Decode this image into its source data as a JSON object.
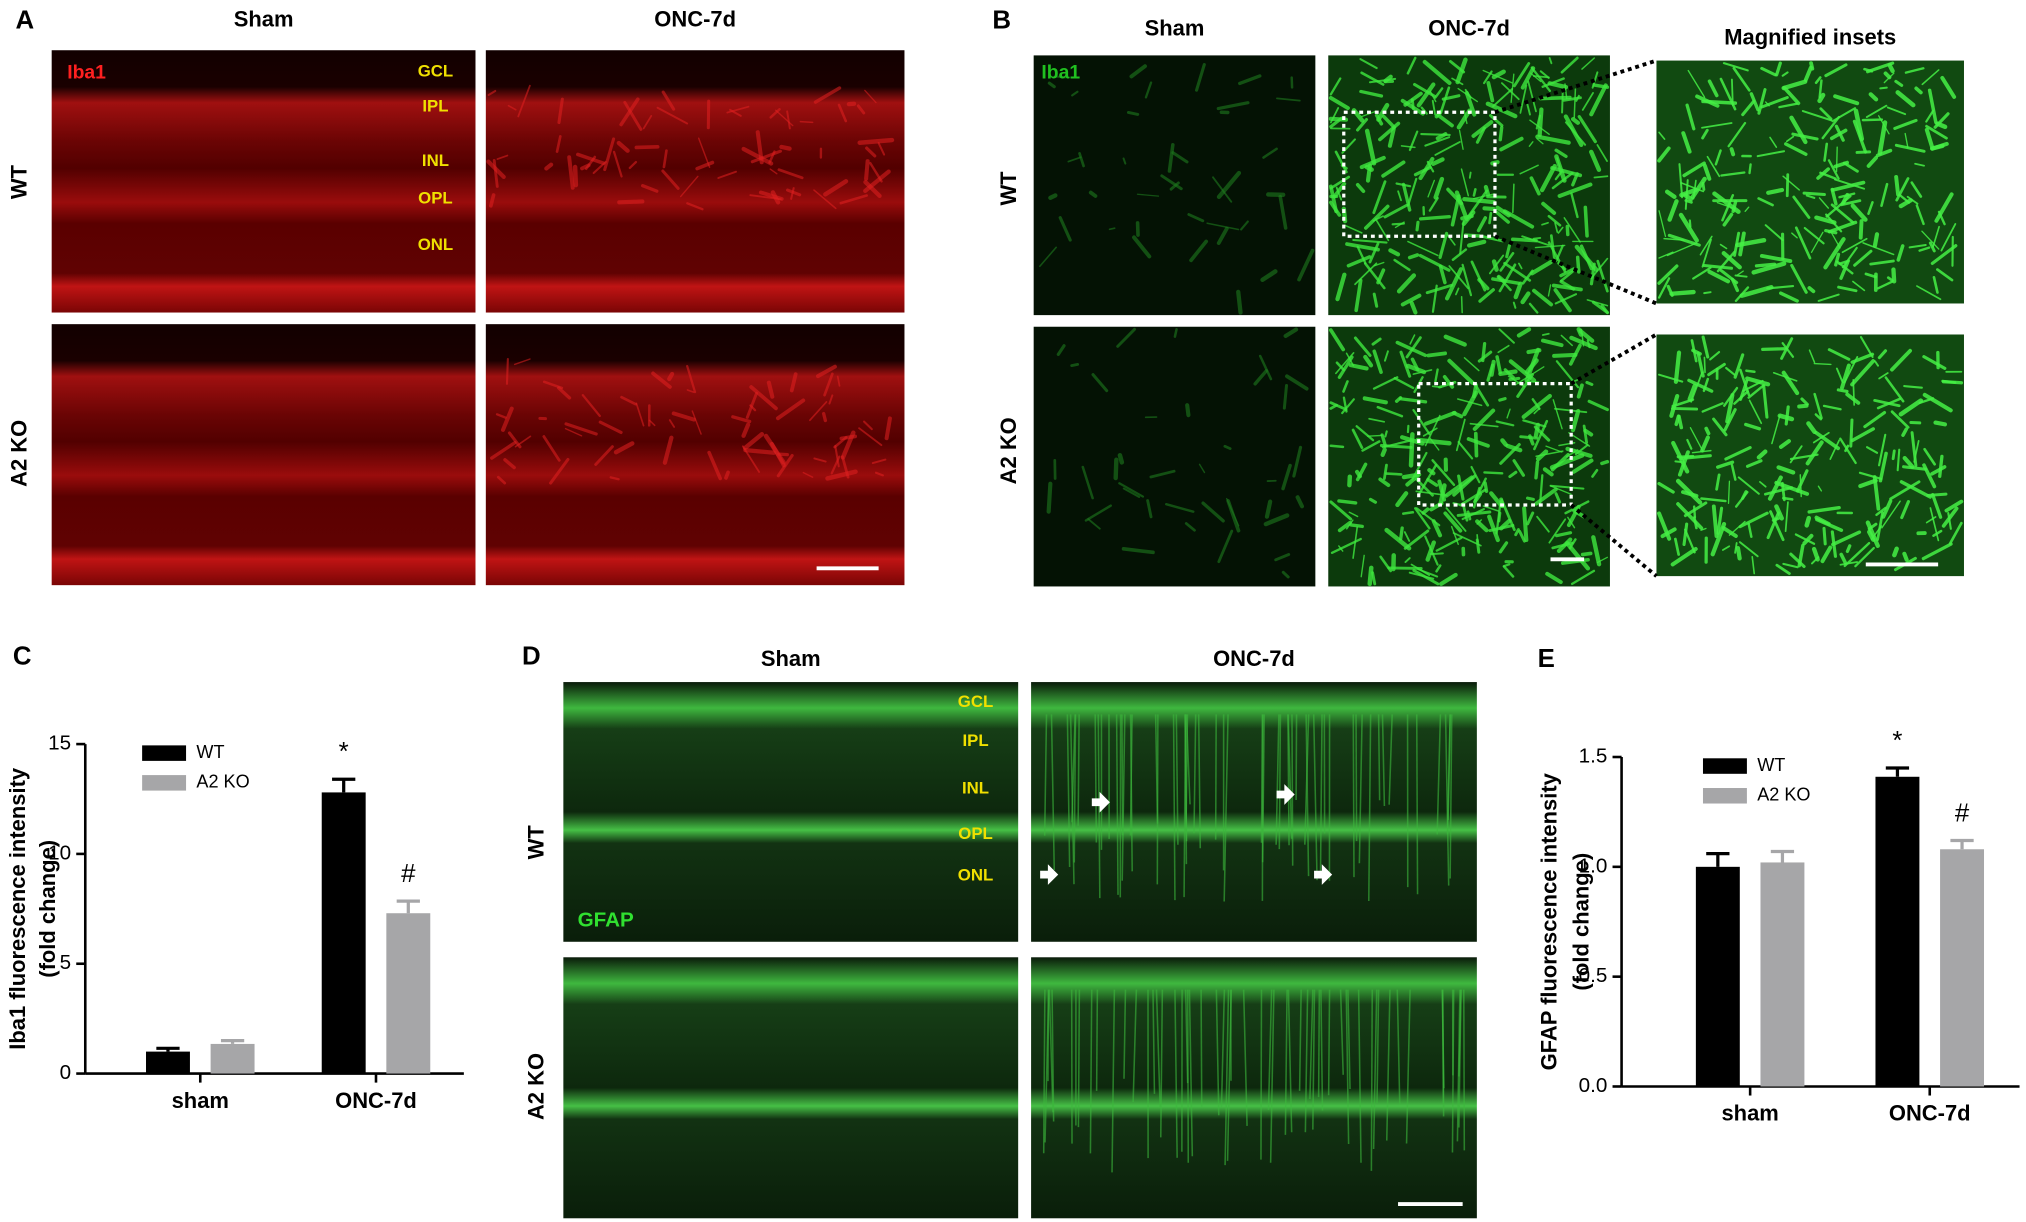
{
  "figure": {
    "A": {
      "letter": "A",
      "columns": [
        "Sham",
        "ONC-7d"
      ],
      "rows": [
        "WT",
        "A2 KO"
      ],
      "stain": "Iba1",
      "layers": [
        "GCL",
        "IPL",
        "INL",
        "OPL",
        "ONL"
      ]
    },
    "B": {
      "letter": "B",
      "columns": [
        "Sham",
        "ONC-7d",
        "Magnified insets"
      ],
      "rows": [
        "WT",
        "A2 KO"
      ],
      "stain": "Iba1"
    },
    "C": {
      "letter": "C"
    },
    "D": {
      "letter": "D",
      "columns": [
        "Sham",
        "ONC-7d"
      ],
      "rows": [
        "WT",
        "A2 KO"
      ],
      "stain": "GFAP",
      "layers": [
        "GCL",
        "IPL",
        "INL",
        "OPL",
        "ONL"
      ]
    },
    "E": {
      "letter": "E"
    }
  },
  "chart_data": [
    {
      "type": "bar",
      "y_label": [
        "Iba1 fluorescence intensity",
        "(fold change)"
      ],
      "categories": [
        "sham",
        "ONC-7d"
      ],
      "series": [
        {
          "name": "WT",
          "color": "#000000",
          "values": [
            1.0,
            12.8
          ],
          "errors": [
            0.15,
            0.6
          ],
          "annotations": [
            null,
            "*"
          ]
        },
        {
          "name": "A2 KO",
          "color": "#a6a6a8",
          "values": [
            1.35,
            7.3
          ],
          "errors": [
            0.15,
            0.55
          ],
          "annotations": [
            null,
            "#"
          ]
        }
      ],
      "ylim": [
        0,
        15
      ],
      "yticks": [
        0,
        5,
        10,
        15
      ],
      "legend": "upper left"
    },
    {
      "type": "bar",
      "y_label": [
        "GFAP fluorescence intensity",
        "(fold change)"
      ],
      "categories": [
        "sham",
        "ONC-7d"
      ],
      "series": [
        {
          "name": "WT",
          "color": "#000000",
          "values": [
            1.0,
            1.41
          ],
          "errors": [
            0.06,
            0.04
          ],
          "annotations": [
            null,
            "*"
          ]
        },
        {
          "name": "A2 KO",
          "color": "#a6a6a8",
          "values": [
            1.02,
            1.08
          ],
          "errors": [
            0.05,
            0.04
          ],
          "annotations": [
            null,
            "#"
          ]
        }
      ],
      "ylim": [
        0,
        1.5
      ],
      "yticks": [
        {
          "value": 0,
          "label": "0.0"
        },
        {
          "value": 0.5,
          "label": "0.5"
        },
        {
          "value": 1,
          "label": "1.0"
        },
        {
          "value": 1.5,
          "label": "1.5"
        }
      ],
      "legend": "upper left"
    }
  ]
}
